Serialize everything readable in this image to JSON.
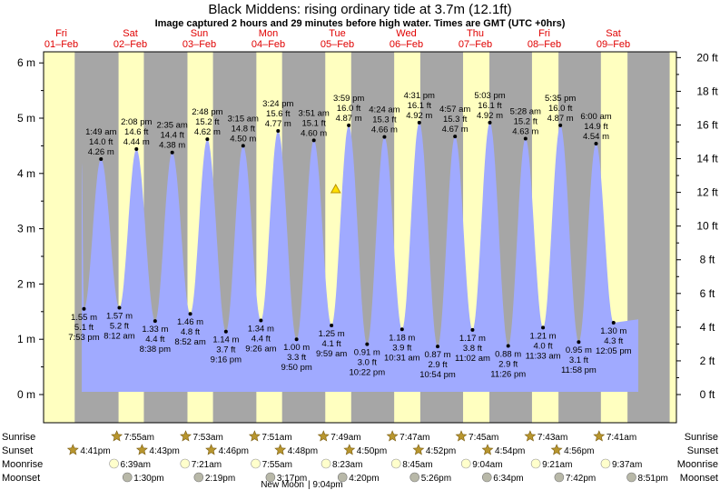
{
  "title": "Black Middens: rising  ordinary tide at 3.7m (12.1ft)",
  "subtitle": "Image captured 2 hours and 29 minutes before high water. Times are GMT (UTC +0hrs)",
  "days": [
    {
      "dow": "Fri",
      "date": "01–Feb"
    },
    {
      "dow": "Sat",
      "date": "02–Feb"
    },
    {
      "dow": "Sun",
      "date": "03–Feb"
    },
    {
      "dow": "Mon",
      "date": "04–Feb"
    },
    {
      "dow": "Tue",
      "date": "05–Feb"
    },
    {
      "dow": "Wed",
      "date": "06–Feb"
    },
    {
      "dow": "Thu",
      "date": "07–Feb"
    },
    {
      "dow": "Fri",
      "date": "08–Feb"
    },
    {
      "dow": "Sat",
      "date": "09–Feb"
    }
  ],
  "rows": {
    "sunrise": "Sunrise",
    "sunset": "Sunset",
    "moonrise": "Moonrise",
    "moonset": "Moonset"
  },
  "sunrise": [
    "7:55am",
    "7:53am",
    "7:51am",
    "7:49am",
    "7:47am",
    "7:45am",
    "7:43am",
    "7:41am"
  ],
  "sunset": [
    "4:41pm",
    "4:43pm",
    "4:46pm",
    "4:48pm",
    "4:50pm",
    "4:52pm",
    "4:54pm",
    "4:56pm"
  ],
  "moonrise": [
    "6:39am",
    "7:21am",
    "7:55am",
    "8:23am",
    "8:45am",
    "9:04am",
    "9:21am",
    "9:37am"
  ],
  "moonset": [
    "1:30pm",
    "2:19pm",
    "3:17pm",
    "4:20pm",
    "5:26pm",
    "6:34pm",
    "7:42pm",
    "8:51pm"
  ],
  "moon_phase": {
    "name": "New Moon",
    "time": "9:04pm"
  },
  "colors": {
    "water": "#a0aaff",
    "day_bg": "#ffffc0",
    "night_bg": "#a6a6a6",
    "day_label": "#e00000",
    "sun_icon": "#b8962e",
    "moonrise_icon": "#ffffcc",
    "moonset_icon": "#b8b8a8"
  },
  "chart_data": {
    "type": "area",
    "current_marker": {
      "time": "05–Feb 10:30",
      "height_m": 3.7
    },
    "y_left": {
      "label": "m",
      "range": [
        -0.5,
        6.2
      ],
      "ticks": [
        "0 m",
        "1 m",
        "2 m",
        "3 m",
        "4 m",
        "5 m",
        "6 m"
      ]
    },
    "y_right": {
      "label": "ft",
      "ticks": [
        "0 ft",
        "2 ft",
        "4 ft",
        "6 ft",
        "8 ft",
        "10 ft",
        "12 ft",
        "14 ft",
        "16 ft",
        "18 ft",
        "20 ft"
      ]
    },
    "tides": [
      {
        "type": "high",
        "time": "1:49 am",
        "m": "4.26 m",
        "ft": "14.0 ft"
      },
      {
        "type": "low",
        "time": "7:53 pm",
        "m": "1.55 m",
        "ft": "5.1 ft"
      },
      {
        "type": "high",
        "time": "2:08 pm",
        "m": "4.44 m",
        "ft": "14.6 ft"
      },
      {
        "type": "low",
        "time": "8:12 am",
        "m": "1.57 m",
        "ft": "5.2 ft"
      },
      {
        "type": "high",
        "time": "2:35 am",
        "m": "4.38 m",
        "ft": "14.4 ft"
      },
      {
        "type": "low",
        "time": "8:38 pm",
        "m": "1.33 m",
        "ft": "4.4 ft"
      },
      {
        "type": "high",
        "time": "2:48 pm",
        "m": "4.62 m",
        "ft": "15.2 ft"
      },
      {
        "type": "low",
        "time": "8:52 am",
        "m": "1.46 m",
        "ft": "4.8 ft"
      },
      {
        "type": "high",
        "time": "3:15 am",
        "m": "4.50 m",
        "ft": "14.8 ft"
      },
      {
        "type": "low",
        "time": "9:16 pm",
        "m": "1.14 m",
        "ft": "3.7 ft"
      },
      {
        "type": "high",
        "time": "3:24 pm",
        "m": "4.77 m",
        "ft": "15.6 ft"
      },
      {
        "type": "low",
        "time": "9:26 am",
        "m": "1.34 m",
        "ft": "4.4 ft"
      },
      {
        "type": "high",
        "time": "3:51 am",
        "m": "4.60 m",
        "ft": "15.1 ft"
      },
      {
        "type": "low",
        "time": "9:50 pm",
        "m": "1.00 m",
        "ft": "3.3 ft"
      },
      {
        "type": "high",
        "time": "3:59 pm",
        "m": "4.87 m",
        "ft": "16.0 ft"
      },
      {
        "type": "low",
        "time": "9:59 am",
        "m": "1.25 m",
        "ft": "4.1 ft"
      },
      {
        "type": "high",
        "time": "4:24 am",
        "m": "4.66 m",
        "ft": "15.3 ft"
      },
      {
        "type": "low",
        "time": "10:22 pm",
        "m": "0.91 m",
        "ft": "3.0 ft"
      },
      {
        "type": "high",
        "time": "4:31 pm",
        "m": "4.92 m",
        "ft": "16.1 ft"
      },
      {
        "type": "low",
        "time": "10:31 am",
        "m": "1.18 m",
        "ft": "3.9 ft"
      },
      {
        "type": "high",
        "time": "4:57 am",
        "m": "4.67 m",
        "ft": "15.3 ft"
      },
      {
        "type": "low",
        "time": "10:54 pm",
        "m": "0.87 m",
        "ft": "2.9 ft"
      },
      {
        "type": "high",
        "time": "5:03 pm",
        "m": "4.92 m",
        "ft": "16.1 ft"
      },
      {
        "type": "low",
        "time": "11:02 am",
        "m": "1.17 m",
        "ft": "3.8 ft"
      },
      {
        "type": "high",
        "time": "5:28 am",
        "m": "4.63 m",
        "ft": "15.2 ft"
      },
      {
        "type": "low",
        "time": "11:26 pm",
        "m": "0.88 m",
        "ft": "2.9 ft"
      },
      {
        "type": "high",
        "time": "5:35 pm",
        "m": "4.87 m",
        "ft": "16.0 ft"
      },
      {
        "type": "low",
        "time": "11:33 am",
        "m": "1.21 m",
        "ft": "4.0 ft"
      },
      {
        "type": "high",
        "time": "6:00 am",
        "m": "4.54 m",
        "ft": "14.9 ft"
      },
      {
        "type": "low",
        "time": "11:58 pm",
        "m": "0.95 m",
        "ft": "3.1 ft"
      },
      {
        "type": "low",
        "time": "12:05 pm",
        "m": "1.30 m",
        "ft": "4.3 ft"
      }
    ]
  }
}
